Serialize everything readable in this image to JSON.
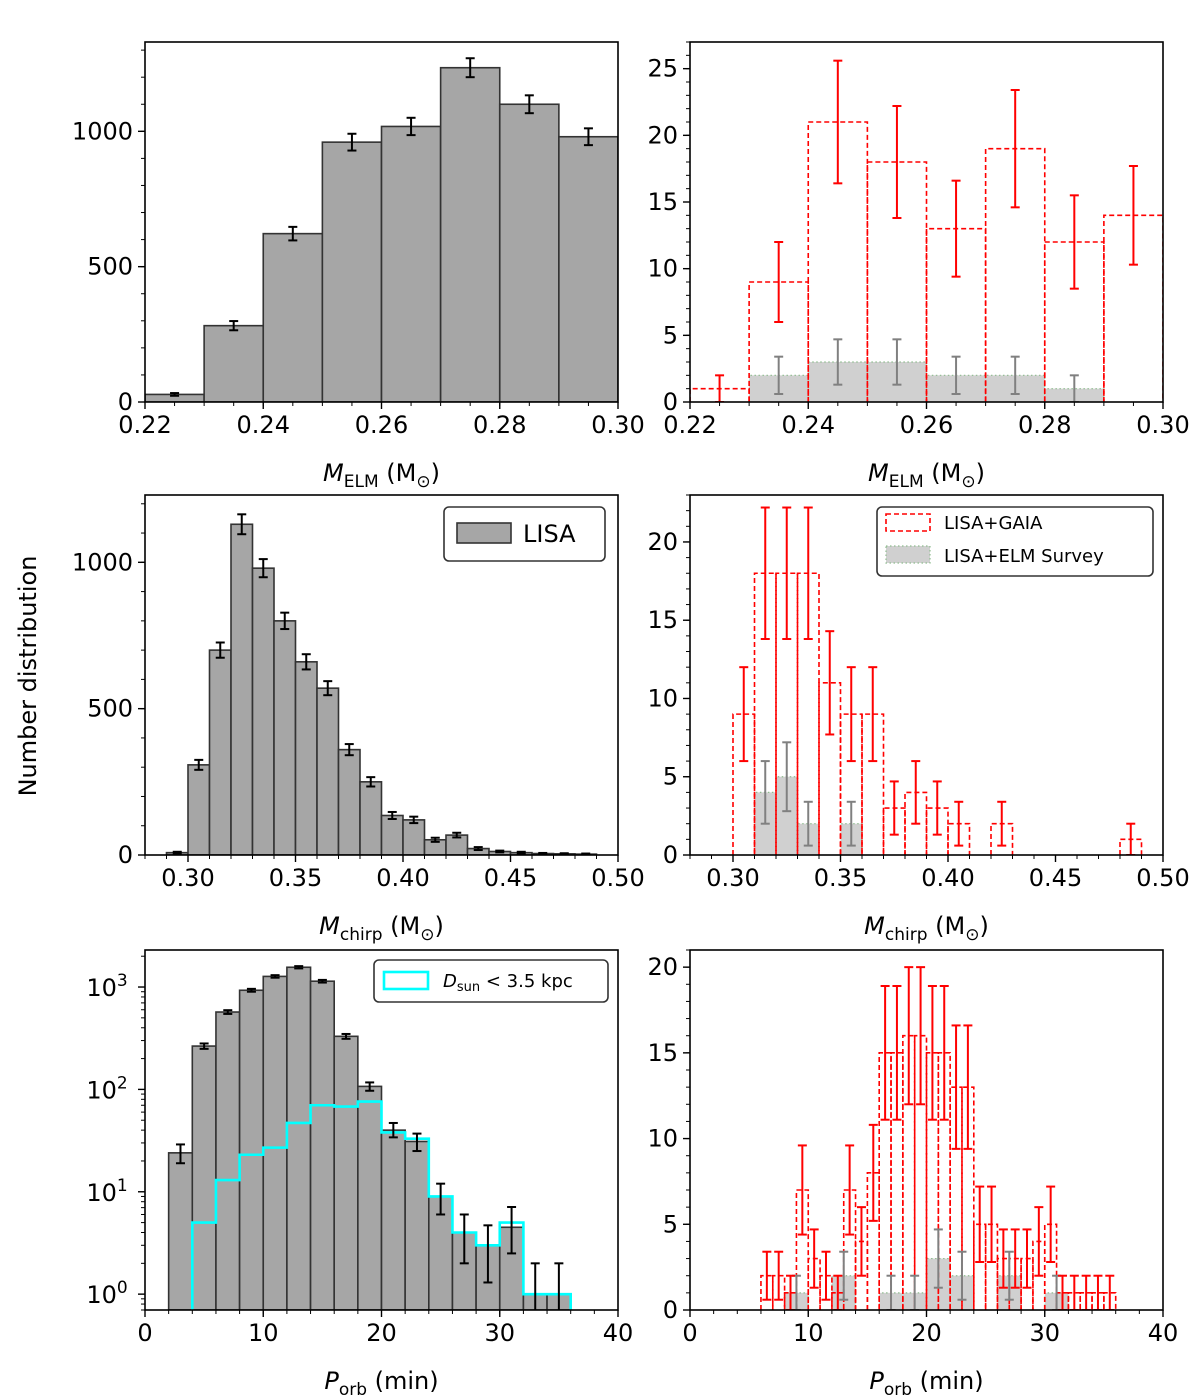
{
  "figure": {
    "ylabel": "Number distribution"
  },
  "chart_data": [
    {
      "id": "a",
      "type": "bar",
      "yscale": "linear",
      "xlim": [
        0.22,
        0.3
      ],
      "ylim": [
        0,
        1330
      ],
      "xticks": [
        "0.22",
        "0.24",
        "0.26",
        "0.28",
        "0.30"
      ],
      "yticks": [
        "0",
        "500",
        "1000"
      ],
      "xlabel": {
        "main": "M",
        "sub": "ELM",
        "unit": " (M",
        "unit_sub": "⊙",
        "close": ")"
      },
      "series": [
        {
          "name": "LISA",
          "style": "gray-fill",
          "edges": [
            0.22,
            0.23,
            0.24,
            0.25,
            0.26,
            0.27,
            0.28,
            0.29,
            0.3
          ],
          "values": [
            28,
            282,
            622,
            960,
            1018,
            1235,
            1100,
            980
          ],
          "errors": [
            5,
            17,
            25,
            31,
            32,
            35,
            33,
            31
          ]
        }
      ]
    },
    {
      "id": "b",
      "type": "bar",
      "yscale": "linear",
      "xlim": [
        0.22,
        0.3
      ],
      "ylim": [
        0,
        27
      ],
      "xticks": [
        "0.22",
        "0.24",
        "0.26",
        "0.28",
        "0.30"
      ],
      "yticks": [
        "0",
        "5",
        "10",
        "15",
        "20",
        "25"
      ],
      "xlabel": {
        "main": "M",
        "sub": "ELM",
        "unit": " (M",
        "unit_sub": "⊙",
        "close": ")"
      },
      "series": [
        {
          "name": "LISA+GAIA",
          "style": "red-dashed",
          "edges": [
            0.22,
            0.23,
            0.24,
            0.25,
            0.26,
            0.27,
            0.28,
            0.29,
            0.3
          ],
          "values": [
            1,
            9,
            21,
            18,
            13,
            19,
            12,
            14
          ],
          "errors": [
            1,
            3,
            4.6,
            4.2,
            3.6,
            4.4,
            3.5,
            3.7
          ]
        },
        {
          "name": "LISA+ELM Survey",
          "style": "gray-dotted",
          "edges": [
            0.22,
            0.23,
            0.24,
            0.25,
            0.26,
            0.27,
            0.28,
            0.29,
            0.3
          ],
          "values": [
            0,
            2,
            3,
            3,
            2,
            2,
            1,
            0
          ],
          "errors": [
            0,
            1.4,
            1.7,
            1.7,
            1.4,
            1.4,
            1,
            0
          ]
        }
      ]
    },
    {
      "id": "c",
      "type": "bar",
      "yscale": "linear",
      "xlim": [
        0.28,
        0.5
      ],
      "ylim": [
        0,
        1230
      ],
      "xticks": [
        "0.30",
        "0.35",
        "0.40",
        "0.45",
        "0.50"
      ],
      "yticks": [
        "0",
        "500",
        "1000"
      ],
      "xlabel": {
        "main": "M",
        "sub": "chirp",
        "unit": " (M",
        "unit_sub": "⊙",
        "close": ")"
      },
      "legend": {
        "position": "top-right",
        "entries": [
          "LISA"
        ]
      },
      "series": [
        {
          "name": "LISA",
          "style": "gray-fill",
          "edges": [
            0.29,
            0.3,
            0.31,
            0.32,
            0.33,
            0.34,
            0.35,
            0.36,
            0.37,
            0.38,
            0.39,
            0.4,
            0.41,
            0.42,
            0.43,
            0.44,
            0.45,
            0.46,
            0.47,
            0.48,
            0.49
          ],
          "values": [
            8,
            308,
            700,
            1130,
            980,
            800,
            660,
            570,
            360,
            250,
            135,
            120,
            52,
            68,
            22,
            12,
            8,
            5,
            4,
            3
          ],
          "errors": [
            3,
            17,
            26,
            34,
            31,
            28,
            26,
            24,
            19,
            16,
            12,
            11,
            7,
            8,
            5,
            3,
            3,
            2,
            2,
            2
          ]
        }
      ]
    },
    {
      "id": "d",
      "type": "bar",
      "yscale": "linear",
      "xlim": [
        0.28,
        0.5
      ],
      "ylim": [
        0,
        23
      ],
      "xticks": [
        "0.30",
        "0.35",
        "0.40",
        "0.45",
        "0.50"
      ],
      "yticks": [
        "0",
        "5",
        "10",
        "15",
        "20"
      ],
      "xlabel": {
        "main": "M",
        "sub": "chirp",
        "unit": " (M",
        "unit_sub": "⊙",
        "close": ")"
      },
      "legend": {
        "position": "top-right",
        "entries": [
          "LISA+GAIA",
          "LISA+ELM Survey"
        ]
      },
      "series": [
        {
          "name": "LISA+GAIA",
          "style": "red-dashed",
          "edges": [
            0.3,
            0.31,
            0.32,
            0.33,
            0.34,
            0.35,
            0.36,
            0.37,
            0.38,
            0.39,
            0.4,
            0.41,
            0.42,
            0.43,
            0.44,
            0.45,
            0.46,
            0.47,
            0.48,
            0.49
          ],
          "values": [
            9,
            18,
            18,
            18,
            11,
            9,
            9,
            3,
            4,
            3,
            2,
            0,
            2,
            0,
            0,
            0,
            0,
            0,
            1
          ],
          "errors": [
            3,
            4.2,
            4.2,
            4.2,
            3.3,
            3,
            3,
            1.7,
            2,
            1.7,
            1.4,
            0,
            1.4,
            0,
            0,
            0,
            0,
            0,
            1
          ]
        },
        {
          "name": "LISA+ELM Survey",
          "style": "gray-dotted",
          "edges": [
            0.31,
            0.32,
            0.33,
            0.34,
            0.35,
            0.36
          ],
          "values": [
            4,
            5,
            2,
            0,
            2
          ],
          "errors": [
            2,
            2.2,
            1.4,
            0,
            1.4
          ]
        }
      ]
    },
    {
      "id": "e",
      "type": "bar",
      "yscale": "log",
      "xlim": [
        0,
        40
      ],
      "ylim": [
        0.7,
        2300
      ],
      "xticks": [
        "0",
        "10",
        "20",
        "30",
        "40"
      ],
      "yticks": [
        {
          "value": 1,
          "base": "10",
          "exp": "0"
        },
        {
          "value": 10,
          "base": "10",
          "exp": "1"
        },
        {
          "value": 100,
          "base": "10",
          "exp": "2"
        },
        {
          "value": 1000,
          "base": "10",
          "exp": "3"
        }
      ],
      "xlabel": {
        "main": "P",
        "sub": "orb",
        "unit": " (min)",
        "unit_sub": "",
        "close": ""
      },
      "legend": {
        "position": "top-right",
        "entries": [
          {
            "main": "D",
            "sub": "sun",
            "rest": " < 3.5 kpc"
          }
        ]
      },
      "series": [
        {
          "name": "LISA",
          "style": "gray-fill",
          "edges": [
            2,
            4,
            6,
            8,
            10,
            12,
            14,
            16,
            18,
            20,
            22,
            24,
            26,
            28,
            30,
            32,
            34,
            36
          ],
          "values": [
            24,
            265,
            570,
            930,
            1270,
            1560,
            1140,
            330,
            107,
            40,
            31,
            9,
            4,
            3,
            4.5,
            1,
            1
          ],
          "errors_low": [
            5,
            16,
            24,
            30,
            36,
            40,
            34,
            18,
            10,
            6,
            6,
            3,
            2,
            1.7,
            2,
            1,
            1
          ],
          "errors_high": [
            5,
            16,
            24,
            30,
            36,
            40,
            34,
            18,
            10,
            7,
            6,
            3,
            2,
            1.7,
            2.6,
            1,
            1
          ]
        },
        {
          "name": "D_sun < 3.5 kpc",
          "style": "cyan-step",
          "edges": [
            4,
            6,
            8,
            10,
            12,
            14,
            16,
            18,
            20,
            22,
            24,
            26,
            28,
            30,
            32,
            34,
            36
          ],
          "values": [
            5,
            13,
            23,
            27,
            47,
            70,
            68,
            76,
            38,
            33,
            9,
            4,
            3,
            5,
            1,
            1
          ]
        }
      ]
    },
    {
      "id": "f",
      "type": "bar",
      "yscale": "linear",
      "xlim": [
        0,
        40
      ],
      "ylim": [
        0,
        21
      ],
      "xticks": [
        "0",
        "10",
        "20",
        "30",
        "40"
      ],
      "yticks": [
        "0",
        "5",
        "10",
        "15",
        "20"
      ],
      "xlabel": {
        "main": "P",
        "sub": "orb",
        "unit": " (min)",
        "unit_sub": "",
        "close": ""
      },
      "series": [
        {
          "name": "LISA+GAIA",
          "style": "red-dashed",
          "edges": [
            6,
            7,
            8,
            9,
            10,
            11,
            12,
            13,
            14,
            15,
            16,
            17,
            18,
            19,
            20,
            21,
            22,
            23,
            24,
            25,
            26,
            27,
            28,
            29,
            30,
            31,
            32,
            33,
            34,
            35,
            36
          ],
          "values": [
            2,
            2,
            1,
            7,
            3,
            2,
            1,
            7,
            4,
            8,
            15,
            15,
            16,
            16,
            15,
            15,
            13,
            13,
            5,
            5,
            3,
            3,
            3,
            4,
            5,
            1,
            1,
            1,
            1,
            1
          ],
          "errors": [
            1.4,
            1.4,
            1,
            2.6,
            1.7,
            1.4,
            1,
            2.6,
            2,
            2.8,
            3.9,
            3.9,
            4,
            4,
            3.9,
            3.9,
            3.6,
            3.6,
            2.2,
            2.2,
            1.7,
            1.7,
            1.7,
            2,
            2.2,
            1,
            1,
            1,
            1,
            1
          ]
        },
        {
          "name": "LISA+ELM Survey",
          "style": "gray-dotted",
          "edges": [
            6,
            8,
            10,
            12,
            14,
            16,
            18,
            20,
            22,
            24,
            26,
            28,
            30,
            32
          ],
          "values": [
            0,
            1,
            0,
            2,
            0,
            1,
            1,
            3,
            2,
            0,
            2,
            0,
            1
          ],
          "errors": [
            0,
            1,
            0,
            1.4,
            0,
            1,
            1,
            1.7,
            1.4,
            0,
            1.4,
            0,
            1
          ]
        }
      ]
    }
  ]
}
